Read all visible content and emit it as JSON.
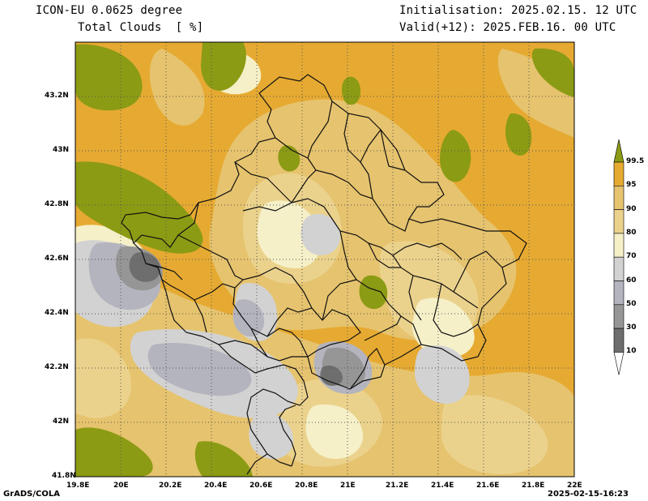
{
  "header": {
    "model": "ICON-EU 0.0625 degree",
    "variable": "Total Clouds  [ %]",
    "init": "Initialisation: 2025.02.15. 12 UTC",
    "valid": "Valid(+12): 2025.FEB.16. 00 UTC"
  },
  "footer": {
    "left": "GrADS/COLA",
    "right": "2025-02-15-16:23"
  },
  "axes": {
    "lat_labels": [
      "42N",
      "42.2N",
      "42.4N",
      "42.6N",
      "42.8N",
      "43N",
      "43.2N"
    ],
    "lon_labels": [
      "20E",
      "20.2E",
      "20.4E",
      "20.6E",
      "20.8E",
      "21E",
      "21.2E",
      "21.4E",
      "21.6E",
      "21.8E",
      "22E"
    ],
    "corner_lat": "41.8N",
    "corner_lon": "19.8E"
  },
  "colorbar": {
    "labels": [
      "10",
      "30",
      "50",
      "60",
      "70",
      "80",
      "90",
      "95",
      "99.5"
    ],
    "colors": [
      "#ffffff",
      "#6e6e6e",
      "#969696",
      "#b4b4be",
      "#d2d2d2",
      "#f5f0c8",
      "#ebd28c",
      "#e6c36e",
      "#e6aa32",
      "#8c9b14"
    ]
  },
  "map_colors": {
    "c95": "#e6aa32",
    "c90": "#e6c36e",
    "c80": "#ebd28c",
    "c70": "#f5f0c8",
    "c60": "#d2d2d2",
    "c50": "#b4b4be",
    "c30": "#969696",
    "c10": "#6e6e6e",
    "c99": "#8c9b14"
  }
}
